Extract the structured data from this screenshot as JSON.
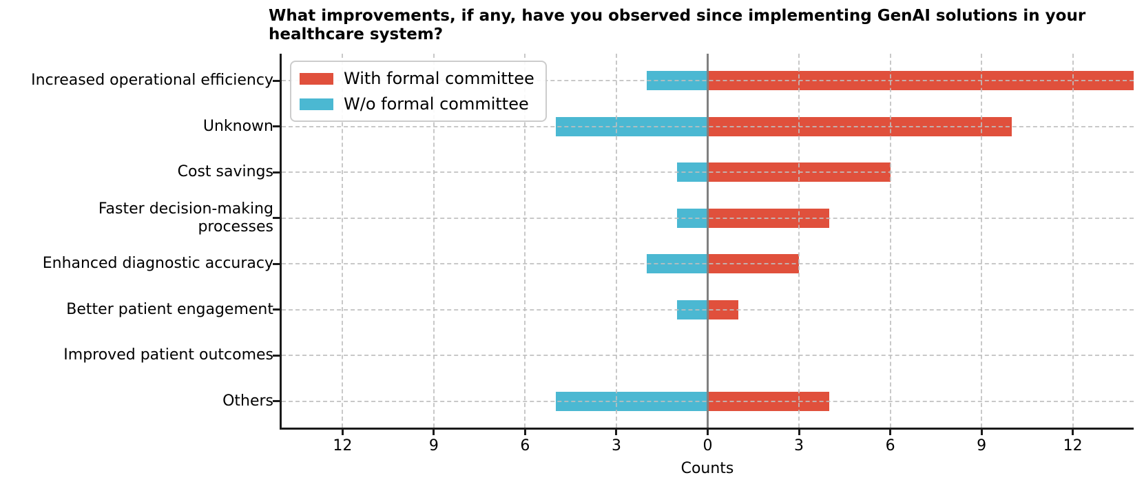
{
  "chart_data": {
    "type": "bar",
    "variant": "diverging-horizontal",
    "title": "What improvements, if any, have you observed since implementing GenAI solutions in your healthcare system?",
    "xlabel": "Counts",
    "categories": [
      "Increased operational efficiency",
      "Unknown",
      "Cost savings",
      "Faster decision-making processes",
      "Enhanced diagnostic accuracy",
      "Better patient engagement",
      "Improved patient outcomes",
      "Others"
    ],
    "series": [
      {
        "name": "With formal committee",
        "color": "#e0503c",
        "direction": "right",
        "values": [
          14,
          10,
          6,
          4,
          3,
          1,
          0,
          4
        ]
      },
      {
        "name": "W/o formal committee",
        "color": "#4bb8d2",
        "direction": "left",
        "values": [
          2,
          5,
          1,
          1,
          2,
          1,
          0,
          5
        ]
      }
    ],
    "x_tick_values": [
      -12,
      -9,
      -6,
      -3,
      0,
      3,
      6,
      9,
      12
    ],
    "x_tick_labels": [
      "12",
      "9",
      "6",
      "3",
      "0",
      "3",
      "6",
      "9",
      "12"
    ],
    "xlim": [
      -14,
      14
    ],
    "grid": {
      "style": "dashed",
      "color": "#c8c8c8"
    },
    "zero_line_color": "#808080",
    "axis_color": "#1a1a1a",
    "legend_position": "upper-left",
    "background": "#ffffff"
  }
}
